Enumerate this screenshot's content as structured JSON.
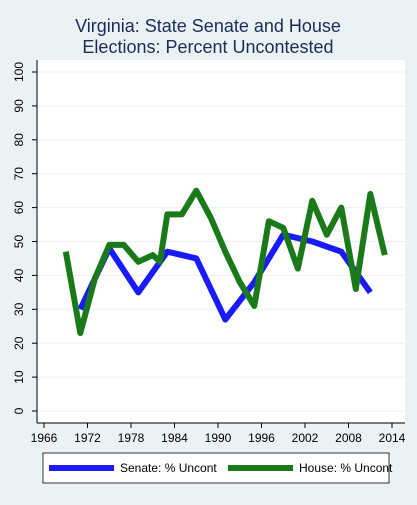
{
  "chart_data": {
    "type": "line",
    "title_lines": [
      "Virginia: State Senate and House",
      "Elections: Percent Uncontested"
    ],
    "xlabel": "",
    "ylabel": "",
    "xlim": [
      1966,
      2014
    ],
    "ylim": [
      0,
      100
    ],
    "x_ticks": [
      "1966",
      "1972",
      "1978",
      "1984",
      "1990",
      "1996",
      "2002",
      "2008",
      "2014"
    ],
    "y_ticks": [
      "0",
      "10",
      "20",
      "30",
      "40",
      "50",
      "60",
      "70",
      "80",
      "90",
      "100"
    ],
    "grid": "horizontal",
    "legend_position": "bottom",
    "series": [
      {
        "name": "Senate: % Uncont",
        "color": "#1a1aff",
        "x": [
          1971,
          1975,
          1979,
          1983,
          1987,
          1991,
          1995,
          1999,
          2003,
          2007,
          2011
        ],
        "y": [
          30,
          48,
          35,
          47,
          45,
          27,
          38,
          52,
          50,
          47,
          35
        ]
      },
      {
        "name": "House: % Uncont",
        "color": "#1a7a1a",
        "x": [
          1969,
          1971,
          1973,
          1975,
          1977,
          1979,
          1981,
          1982,
          1983,
          1985,
          1987,
          1989,
          1991,
          1993,
          1995,
          1997,
          1999,
          2001,
          2003,
          2005,
          2007,
          2009,
          2011,
          2013
        ],
        "y": [
          47,
          23,
          39,
          49,
          49,
          44,
          46,
          44,
          58,
          58,
          65,
          57,
          47,
          38,
          31,
          56,
          54,
          42,
          62,
          52,
          60,
          36,
          64,
          46
        ]
      }
    ]
  }
}
